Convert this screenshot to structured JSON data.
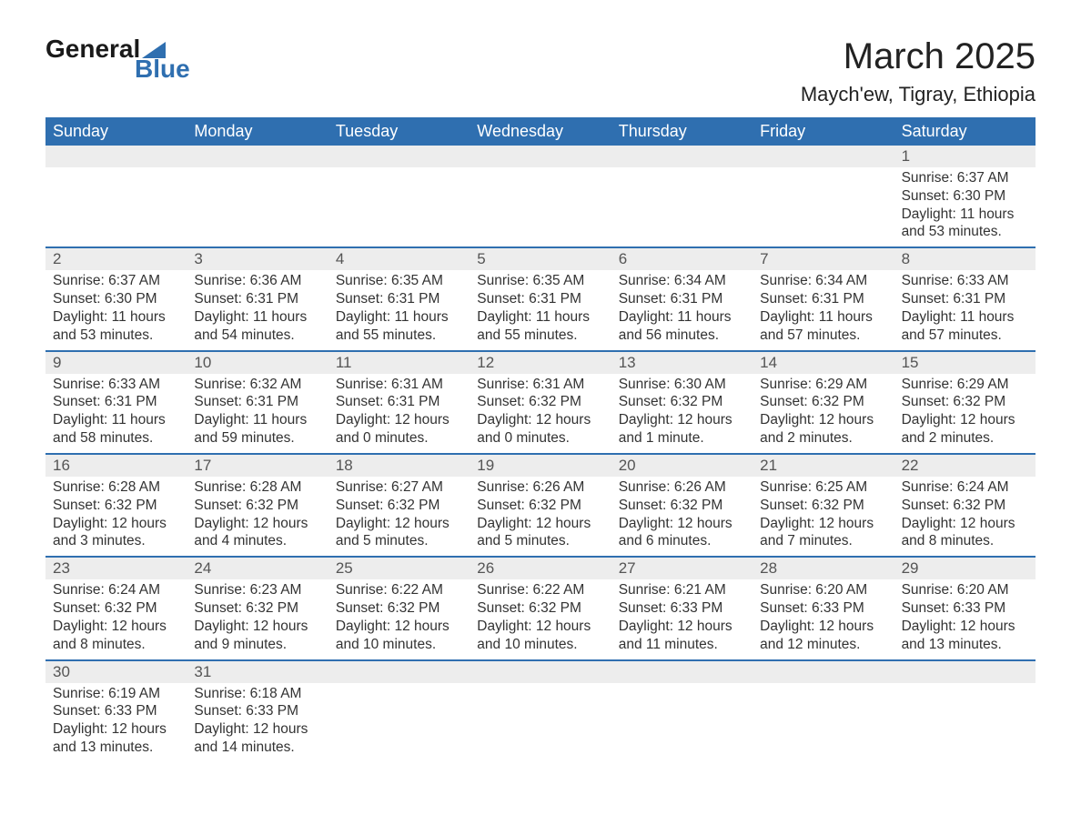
{
  "logo": {
    "text_general": "General",
    "text_blue": "Blue"
  },
  "header": {
    "month_title": "March 2025",
    "location": "Maych'ew, Tigray, Ethiopia"
  },
  "colors": {
    "accent": "#2f6fb0",
    "header_text": "#ffffff",
    "daynum_bg": "#ededed",
    "body_text": "#333333",
    "page_bg": "#ffffff"
  },
  "weekdays": [
    "Sunday",
    "Monday",
    "Tuesday",
    "Wednesday",
    "Thursday",
    "Friday",
    "Saturday"
  ],
  "weeks": [
    [
      {
        "day": "",
        "sunrise": "",
        "sunset": "",
        "daylight1": "",
        "daylight2": ""
      },
      {
        "day": "",
        "sunrise": "",
        "sunset": "",
        "daylight1": "",
        "daylight2": ""
      },
      {
        "day": "",
        "sunrise": "",
        "sunset": "",
        "daylight1": "",
        "daylight2": ""
      },
      {
        "day": "",
        "sunrise": "",
        "sunset": "",
        "daylight1": "",
        "daylight2": ""
      },
      {
        "day": "",
        "sunrise": "",
        "sunset": "",
        "daylight1": "",
        "daylight2": ""
      },
      {
        "day": "",
        "sunrise": "",
        "sunset": "",
        "daylight1": "",
        "daylight2": ""
      },
      {
        "day": "1",
        "sunrise": "Sunrise: 6:37 AM",
        "sunset": "Sunset: 6:30 PM",
        "daylight1": "Daylight: 11 hours",
        "daylight2": "and 53 minutes."
      }
    ],
    [
      {
        "day": "2",
        "sunrise": "Sunrise: 6:37 AM",
        "sunset": "Sunset: 6:30 PM",
        "daylight1": "Daylight: 11 hours",
        "daylight2": "and 53 minutes."
      },
      {
        "day": "3",
        "sunrise": "Sunrise: 6:36 AM",
        "sunset": "Sunset: 6:31 PM",
        "daylight1": "Daylight: 11 hours",
        "daylight2": "and 54 minutes."
      },
      {
        "day": "4",
        "sunrise": "Sunrise: 6:35 AM",
        "sunset": "Sunset: 6:31 PM",
        "daylight1": "Daylight: 11 hours",
        "daylight2": "and 55 minutes."
      },
      {
        "day": "5",
        "sunrise": "Sunrise: 6:35 AM",
        "sunset": "Sunset: 6:31 PM",
        "daylight1": "Daylight: 11 hours",
        "daylight2": "and 55 minutes."
      },
      {
        "day": "6",
        "sunrise": "Sunrise: 6:34 AM",
        "sunset": "Sunset: 6:31 PM",
        "daylight1": "Daylight: 11 hours",
        "daylight2": "and 56 minutes."
      },
      {
        "day": "7",
        "sunrise": "Sunrise: 6:34 AM",
        "sunset": "Sunset: 6:31 PM",
        "daylight1": "Daylight: 11 hours",
        "daylight2": "and 57 minutes."
      },
      {
        "day": "8",
        "sunrise": "Sunrise: 6:33 AM",
        "sunset": "Sunset: 6:31 PM",
        "daylight1": "Daylight: 11 hours",
        "daylight2": "and 57 minutes."
      }
    ],
    [
      {
        "day": "9",
        "sunrise": "Sunrise: 6:33 AM",
        "sunset": "Sunset: 6:31 PM",
        "daylight1": "Daylight: 11 hours",
        "daylight2": "and 58 minutes."
      },
      {
        "day": "10",
        "sunrise": "Sunrise: 6:32 AM",
        "sunset": "Sunset: 6:31 PM",
        "daylight1": "Daylight: 11 hours",
        "daylight2": "and 59 minutes."
      },
      {
        "day": "11",
        "sunrise": "Sunrise: 6:31 AM",
        "sunset": "Sunset: 6:31 PM",
        "daylight1": "Daylight: 12 hours",
        "daylight2": "and 0 minutes."
      },
      {
        "day": "12",
        "sunrise": "Sunrise: 6:31 AM",
        "sunset": "Sunset: 6:32 PM",
        "daylight1": "Daylight: 12 hours",
        "daylight2": "and 0 minutes."
      },
      {
        "day": "13",
        "sunrise": "Sunrise: 6:30 AM",
        "sunset": "Sunset: 6:32 PM",
        "daylight1": "Daylight: 12 hours",
        "daylight2": "and 1 minute."
      },
      {
        "day": "14",
        "sunrise": "Sunrise: 6:29 AM",
        "sunset": "Sunset: 6:32 PM",
        "daylight1": "Daylight: 12 hours",
        "daylight2": "and 2 minutes."
      },
      {
        "day": "15",
        "sunrise": "Sunrise: 6:29 AM",
        "sunset": "Sunset: 6:32 PM",
        "daylight1": "Daylight: 12 hours",
        "daylight2": "and 2 minutes."
      }
    ],
    [
      {
        "day": "16",
        "sunrise": "Sunrise: 6:28 AM",
        "sunset": "Sunset: 6:32 PM",
        "daylight1": "Daylight: 12 hours",
        "daylight2": "and 3 minutes."
      },
      {
        "day": "17",
        "sunrise": "Sunrise: 6:28 AM",
        "sunset": "Sunset: 6:32 PM",
        "daylight1": "Daylight: 12 hours",
        "daylight2": "and 4 minutes."
      },
      {
        "day": "18",
        "sunrise": "Sunrise: 6:27 AM",
        "sunset": "Sunset: 6:32 PM",
        "daylight1": "Daylight: 12 hours",
        "daylight2": "and 5 minutes."
      },
      {
        "day": "19",
        "sunrise": "Sunrise: 6:26 AM",
        "sunset": "Sunset: 6:32 PM",
        "daylight1": "Daylight: 12 hours",
        "daylight2": "and 5 minutes."
      },
      {
        "day": "20",
        "sunrise": "Sunrise: 6:26 AM",
        "sunset": "Sunset: 6:32 PM",
        "daylight1": "Daylight: 12 hours",
        "daylight2": "and 6 minutes."
      },
      {
        "day": "21",
        "sunrise": "Sunrise: 6:25 AM",
        "sunset": "Sunset: 6:32 PM",
        "daylight1": "Daylight: 12 hours",
        "daylight2": "and 7 minutes."
      },
      {
        "day": "22",
        "sunrise": "Sunrise: 6:24 AM",
        "sunset": "Sunset: 6:32 PM",
        "daylight1": "Daylight: 12 hours",
        "daylight2": "and 8 minutes."
      }
    ],
    [
      {
        "day": "23",
        "sunrise": "Sunrise: 6:24 AM",
        "sunset": "Sunset: 6:32 PM",
        "daylight1": "Daylight: 12 hours",
        "daylight2": "and 8 minutes."
      },
      {
        "day": "24",
        "sunrise": "Sunrise: 6:23 AM",
        "sunset": "Sunset: 6:32 PM",
        "daylight1": "Daylight: 12 hours",
        "daylight2": "and 9 minutes."
      },
      {
        "day": "25",
        "sunrise": "Sunrise: 6:22 AM",
        "sunset": "Sunset: 6:32 PM",
        "daylight1": "Daylight: 12 hours",
        "daylight2": "and 10 minutes."
      },
      {
        "day": "26",
        "sunrise": "Sunrise: 6:22 AM",
        "sunset": "Sunset: 6:32 PM",
        "daylight1": "Daylight: 12 hours",
        "daylight2": "and 10 minutes."
      },
      {
        "day": "27",
        "sunrise": "Sunrise: 6:21 AM",
        "sunset": "Sunset: 6:33 PM",
        "daylight1": "Daylight: 12 hours",
        "daylight2": "and 11 minutes."
      },
      {
        "day": "28",
        "sunrise": "Sunrise: 6:20 AM",
        "sunset": "Sunset: 6:33 PM",
        "daylight1": "Daylight: 12 hours",
        "daylight2": "and 12 minutes."
      },
      {
        "day": "29",
        "sunrise": "Sunrise: 6:20 AM",
        "sunset": "Sunset: 6:33 PM",
        "daylight1": "Daylight: 12 hours",
        "daylight2": "and 13 minutes."
      }
    ],
    [
      {
        "day": "30",
        "sunrise": "Sunrise: 6:19 AM",
        "sunset": "Sunset: 6:33 PM",
        "daylight1": "Daylight: 12 hours",
        "daylight2": "and 13 minutes."
      },
      {
        "day": "31",
        "sunrise": "Sunrise: 6:18 AM",
        "sunset": "Sunset: 6:33 PM",
        "daylight1": "Daylight: 12 hours",
        "daylight2": "and 14 minutes."
      },
      {
        "day": "",
        "sunrise": "",
        "sunset": "",
        "daylight1": "",
        "daylight2": ""
      },
      {
        "day": "",
        "sunrise": "",
        "sunset": "",
        "daylight1": "",
        "daylight2": ""
      },
      {
        "day": "",
        "sunrise": "",
        "sunset": "",
        "daylight1": "",
        "daylight2": ""
      },
      {
        "day": "",
        "sunrise": "",
        "sunset": "",
        "daylight1": "",
        "daylight2": ""
      },
      {
        "day": "",
        "sunrise": "",
        "sunset": "",
        "daylight1": "",
        "daylight2": ""
      }
    ]
  ]
}
